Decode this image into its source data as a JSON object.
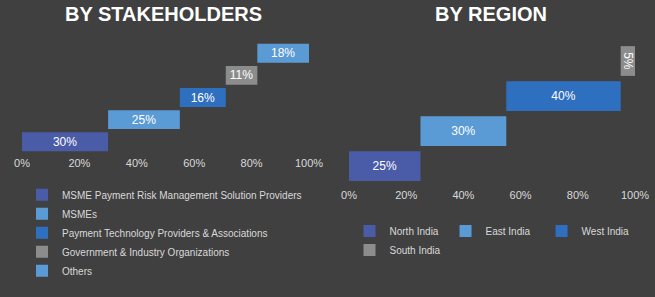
{
  "chart_data": [
    {
      "type": "waterfall",
      "title": "BY STAKEHOLDERS",
      "orientation": "horizontal",
      "categories": [
        "MSME Payment Risk Management Solution Providers",
        "MSMEs",
        "Payment Technology Providers & Associations",
        "Government & Industry Organizations",
        "Others"
      ],
      "values": [
        30,
        25,
        16,
        11,
        18
      ],
      "value_labels": [
        "30%",
        "25%",
        "16%",
        "11%",
        "18%"
      ],
      "colors": [
        "#4a5ba8",
        "#5b9bd5",
        "#2f6fc0",
        "#8c8c8c",
        "#5b9bd5"
      ],
      "xlim": [
        0,
        100
      ],
      "xticks": [
        {
          "value": 0,
          "label": "0%"
        },
        {
          "value": 20,
          "label": "20%"
        },
        {
          "value": 40,
          "label": "40%"
        },
        {
          "value": 60,
          "label": "60%"
        },
        {
          "value": 80,
          "label": "80%"
        },
        {
          "value": 100,
          "label": "100%"
        }
      ],
      "grid": false,
      "data_labels": true,
      "tick_labels": "x",
      "legend": "bottom"
    },
    {
      "type": "waterfall",
      "title": "BY REGION",
      "orientation": "horizontal",
      "categories": [
        "North India",
        "East India",
        "West India",
        "South India"
      ],
      "values": [
        25,
        30,
        40,
        5
      ],
      "value_labels": [
        "25%",
        "30%",
        "40%",
        "5%"
      ],
      "colors": [
        "#4a5ba8",
        "#5b9bd5",
        "#2f6fc0",
        "#8c8c8c"
      ],
      "xlim": [
        0,
        100
      ],
      "xticks": [
        {
          "value": 0,
          "label": "0%"
        },
        {
          "value": 20,
          "label": "20%"
        },
        {
          "value": 40,
          "label": "40%"
        },
        {
          "value": 60,
          "label": "60%"
        },
        {
          "value": 80,
          "label": "80%"
        },
        {
          "value": 100,
          "label": "100%"
        }
      ],
      "grid": false,
      "data_labels": true,
      "tick_labels": "x",
      "legend": "bottom"
    }
  ]
}
